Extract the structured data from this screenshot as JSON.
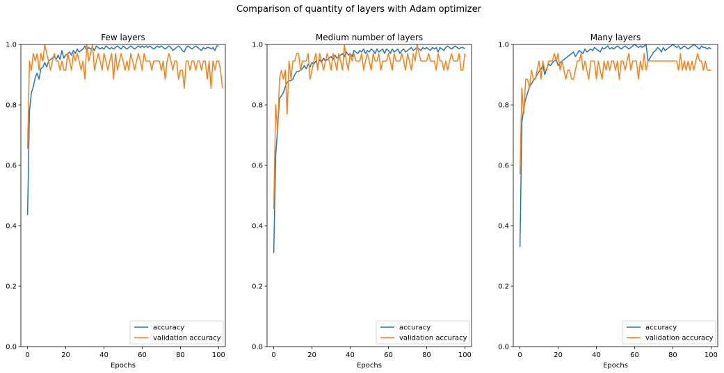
{
  "figure": {
    "suptitle": "Comparison of quantity of layers with Adam optimizer"
  },
  "colors": {
    "accuracy": "#1f77b4",
    "validation_accuracy": "#ff7f0e"
  },
  "chart_data": [
    {
      "type": "line",
      "title": "Few layers",
      "xlabel": "Epochs",
      "ylabel": "",
      "xlim": [
        -3.5,
        103.5
      ],
      "ylim": [
        0,
        1
      ],
      "xticks": [
        0,
        20,
        40,
        60,
        80,
        100
      ],
      "yticks": [
        0.0,
        0.2,
        0.4,
        0.6,
        0.8,
        1.0
      ],
      "legend": "lower-right",
      "grid": false,
      "series": [
        {
          "name": "accuracy",
          "x_start": 0,
          "values": [
            0.435,
            0.78,
            0.84,
            0.86,
            0.89,
            0.905,
            0.885,
            0.92,
            0.925,
            0.94,
            0.925,
            0.945,
            0.95,
            0.955,
            0.96,
            0.95,
            0.965,
            0.95,
            0.98,
            0.955,
            0.965,
            0.97,
            0.975,
            0.965,
            0.98,
            0.97,
            0.985,
            0.975,
            0.98,
            0.985,
            0.995,
            0.98,
            0.99,
            0.985,
            0.99,
            0.98,
            0.995,
            0.99,
            0.985,
            0.99,
            0.985,
            0.995,
            0.99,
            0.985,
            0.99,
            0.985,
            0.99,
            0.995,
            0.99,
            0.985,
            0.995,
            0.99,
            0.985,
            0.99,
            0.995,
            0.99,
            0.985,
            0.99,
            0.995,
            0.99,
            0.995,
            0.99,
            0.995,
            0.99,
            0.995,
            0.99,
            0.985,
            0.99,
            0.995,
            0.99,
            0.995,
            0.99,
            0.985,
            0.99,
            0.995,
            0.99,
            0.98,
            0.985,
            0.99,
            0.995,
            0.99,
            0.98,
            0.975,
            0.99,
            0.995,
            0.99,
            0.985,
            0.99,
            0.995,
            0.99,
            0.985,
            0.98,
            0.99,
            0.985,
            0.99,
            0.99,
            0.985,
            0.99,
            0.98,
            0.995,
            0.995
          ]
        },
        {
          "name": "validation accuracy",
          "x_start": 0,
          "values": [
            0.655,
            0.945,
            0.915,
            0.97,
            0.945,
            0.97,
            0.915,
            0.97,
            0.945,
            1.0,
            0.97,
            0.945,
            0.915,
            0.945,
            0.97,
            0.945,
            0.945,
            0.915,
            0.945,
            0.915,
            0.915,
            0.97,
            0.945,
            0.915,
            0.97,
            0.945,
            0.97,
            0.945,
            0.915,
            0.945,
            0.885,
            1.0,
            0.945,
            0.97,
            1.0,
            0.915,
            0.945,
            0.97,
            0.945,
            0.915,
            0.97,
            0.945,
            0.915,
            0.945,
            0.97,
            0.885,
            0.97,
            0.915,
            0.945,
            0.97,
            0.945,
            0.915,
            0.945,
            0.915,
            0.97,
            0.945,
            0.915,
            0.945,
            0.97,
            0.945,
            0.915,
            0.97,
            0.945,
            0.945,
            0.945,
            0.915,
            0.945,
            0.945,
            0.945,
            0.945,
            0.915,
            0.945,
            0.885,
            0.945,
            0.97,
            0.945,
            0.915,
            0.945,
            0.945,
            0.885,
            0.915,
            0.915,
            0.855,
            0.945,
            0.945,
            0.915,
            0.945,
            0.945,
            0.915,
            0.945,
            0.945,
            0.915,
            0.945,
            0.945,
            0.885,
            0.945,
            0.855,
            0.945,
            0.915,
            0.945,
            0.945,
            0.915,
            0.855
          ]
        }
      ]
    },
    {
      "type": "line",
      "title": "Medium number of layers",
      "xlabel": "Epochs",
      "ylabel": "",
      "xlim": [
        -3.5,
        103.5
      ],
      "ylim": [
        0,
        1
      ],
      "xticks": [
        0,
        20,
        40,
        60,
        80,
        100
      ],
      "yticks": [
        0.0,
        0.2,
        0.4,
        0.6,
        0.8,
        1.0
      ],
      "legend": "lower-right",
      "grid": false,
      "series": [
        {
          "name": "accuracy",
          "x_start": 0,
          "values": [
            0.31,
            0.63,
            0.72,
            0.82,
            0.83,
            0.84,
            0.86,
            0.875,
            0.88,
            0.88,
            0.885,
            0.9,
            0.91,
            0.91,
            0.915,
            0.92,
            0.93,
            0.92,
            0.935,
            0.925,
            0.94,
            0.935,
            0.945,
            0.93,
            0.95,
            0.94,
            0.955,
            0.945,
            0.95,
            0.955,
            0.96,
            0.95,
            0.965,
            0.955,
            0.96,
            0.965,
            0.97,
            0.96,
            0.975,
            0.965,
            0.97,
            0.96,
            0.98,
            0.975,
            0.97,
            0.98,
            0.975,
            0.985,
            0.97,
            0.98,
            0.975,
            0.985,
            0.98,
            0.97,
            0.985,
            0.975,
            0.98,
            0.985,
            0.97,
            0.985,
            0.98,
            0.97,
            0.985,
            0.975,
            0.98,
            0.985,
            0.97,
            0.98,
            0.985,
            0.975,
            0.98,
            0.985,
            0.99,
            0.98,
            0.985,
            0.99,
            0.985,
            0.98,
            0.99,
            0.985,
            0.99,
            0.985,
            0.98,
            0.99,
            0.985,
            0.99,
            0.975,
            0.99,
            0.985,
            0.98,
            0.99,
            0.995,
            0.99,
            0.985,
            0.99,
            0.995,
            0.99,
            0.985,
            0.99,
            0.99,
            0.985
          ]
        },
        {
          "name": "validation accuracy",
          "x_start": 0,
          "values": [
            0.455,
            0.8,
            0.71,
            0.885,
            0.915,
            0.885,
            0.915,
            0.77,
            0.945,
            0.885,
            0.945,
            0.945,
            0.97,
            0.97,
            0.915,
            0.945,
            0.945,
            0.945,
            0.97,
            0.885,
            0.915,
            0.945,
            0.97,
            0.915,
            0.97,
            0.945,
            0.915,
            0.945,
            0.97,
            0.945,
            0.915,
            0.97,
            0.945,
            0.915,
            0.97,
            0.945,
            0.915,
            1.0,
            0.945,
            0.915,
            0.97,
            0.945,
            0.97,
            0.945,
            0.945,
            0.945,
            0.97,
            0.915,
            0.945,
            0.97,
            0.945,
            0.915,
            0.97,
            0.945,
            0.945,
            0.97,
            0.915,
            0.945,
            0.945,
            0.945,
            0.97,
            0.945,
            0.915,
            0.97,
            0.945,
            0.945,
            0.945,
            0.97,
            0.945,
            0.915,
            0.97,
            0.945,
            0.915,
            0.97,
            0.945,
            1.0,
            0.97,
            0.945,
            0.945,
            0.945,
            0.945,
            0.97,
            0.945,
            0.945,
            0.945,
            0.915,
            0.97,
            0.945,
            0.945,
            0.915,
            0.945,
            0.915,
            0.945,
            0.97,
            0.945,
            0.945,
            0.945,
            0.97,
            0.915,
            0.915,
            0.97
          ]
        }
      ]
    },
    {
      "type": "line",
      "title": "Many layers",
      "xlabel": "Epochs",
      "ylabel": "",
      "xlim": [
        -3.5,
        103.5
      ],
      "ylim": [
        0,
        1
      ],
      "xticks": [
        0,
        20,
        40,
        60,
        80,
        100
      ],
      "yticks": [
        0.0,
        0.2,
        0.4,
        0.6,
        0.8,
        1.0
      ],
      "legend": "lower-right",
      "grid": false,
      "series": [
        {
          "name": "accuracy",
          "x_start": 0,
          "values": [
            0.33,
            0.74,
            0.79,
            0.82,
            0.84,
            0.86,
            0.87,
            0.88,
            0.89,
            0.9,
            0.91,
            0.92,
            0.93,
            0.9,
            0.92,
            0.935,
            0.93,
            0.94,
            0.945,
            0.95,
            0.93,
            0.94,
            0.945,
            0.95,
            0.955,
            0.96,
            0.965,
            0.97,
            0.975,
            0.96,
            0.97,
            0.98,
            0.975,
            0.97,
            0.985,
            0.975,
            0.98,
            0.985,
            0.98,
            0.99,
            0.985,
            0.98,
            0.975,
            0.99,
            0.985,
            0.99,
            0.995,
            0.985,
            0.99,
            0.985,
            0.99,
            0.995,
            0.99,
            0.985,
            0.99,
            0.995,
            0.99,
            0.985,
            0.99,
            0.995,
            1.0,
            0.995,
            0.99,
            0.995,
            0.99,
            0.995,
            1.0,
            0.945,
            0.955,
            0.965,
            0.975,
            0.98,
            0.99,
            0.985,
            0.975,
            0.99,
            0.98,
            0.985,
            0.99,
            0.995,
            1.0,
            0.995,
            0.99,
            0.995,
            0.985,
            0.99,
            0.995,
            0.99,
            0.985,
            0.99,
            0.995,
            1.0,
            0.995,
            0.99,
            0.985,
            0.995,
            0.99,
            0.99,
            0.985,
            0.99,
            0.985
          ]
        },
        {
          "name": "validation accuracy",
          "x_start": 0,
          "values": [
            0.57,
            0.855,
            0.77,
            0.885,
            0.885,
            0.855,
            0.915,
            0.885,
            0.885,
            0.915,
            0.945,
            0.885,
            0.945,
            0.915,
            0.915,
            0.945,
            0.945,
            0.945,
            0.97,
            0.945,
            0.97,
            0.915,
            0.945,
            0.915,
            0.885,
            0.915,
            0.915,
            0.885,
            0.885,
            0.915,
            0.945,
            0.945,
            0.97,
            0.915,
            0.945,
            0.915,
            0.885,
            0.945,
            0.945,
            0.945,
            0.885,
            0.945,
            0.915,
            0.885,
            0.945,
            0.915,
            0.945,
            0.915,
            0.945,
            0.945,
            0.915,
            0.945,
            0.885,
            0.945,
            0.945,
            0.915,
            0.945,
            0.97,
            0.915,
            0.945,
            0.945,
            0.945,
            0.885,
            0.945,
            0.915,
            0.97,
            0.915,
            0.945,
            0.945,
            0.945,
            0.945,
            0.945,
            0.945,
            0.945,
            0.945,
            0.945,
            0.945,
            0.945,
            0.945,
            0.945,
            0.945,
            0.945,
            0.945,
            0.915,
            0.97,
            0.915,
            0.945,
            0.915,
            0.945,
            0.915,
            0.945,
            0.915,
            0.945,
            0.97,
            0.945,
            0.945,
            0.915,
            0.945,
            0.915,
            0.915,
            0.915
          ]
        }
      ]
    }
  ]
}
